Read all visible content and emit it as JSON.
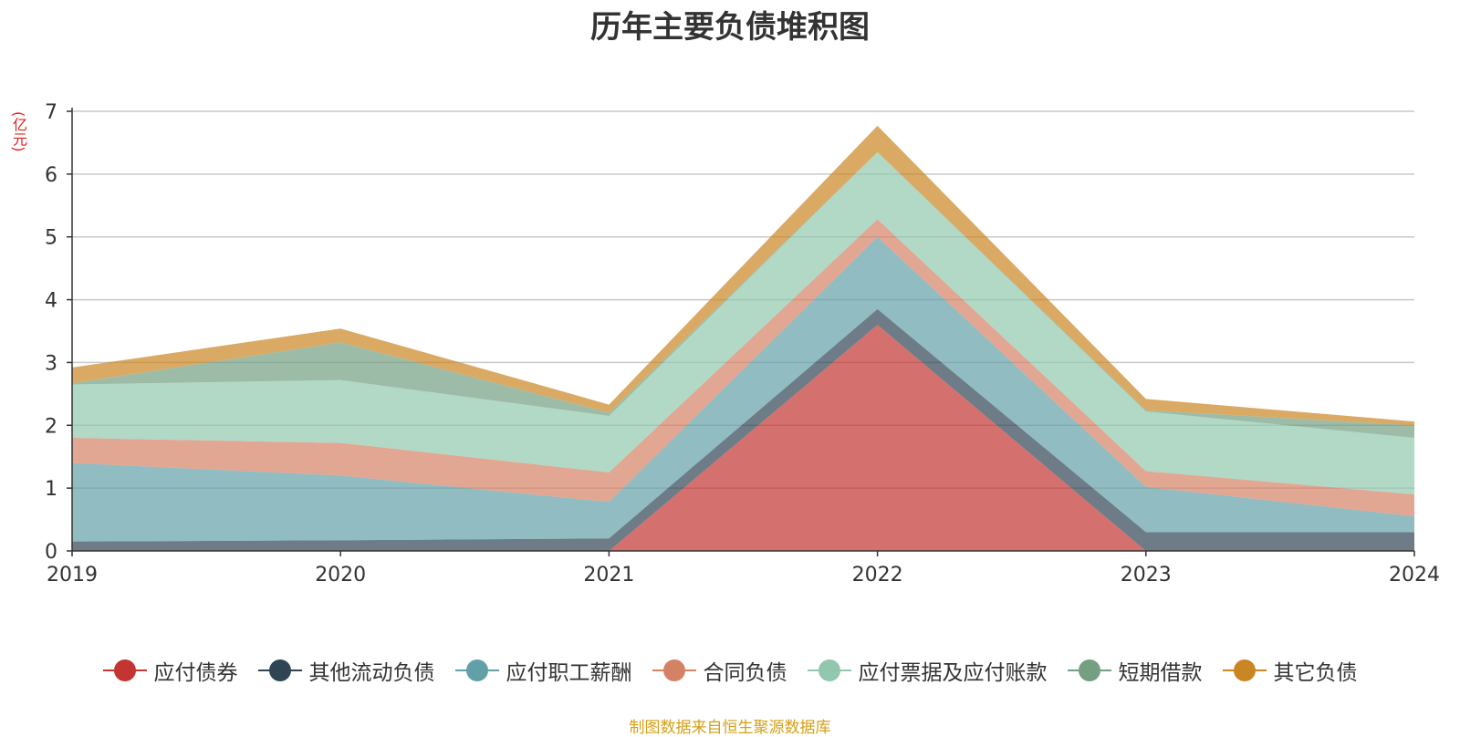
{
  "chart_data": {
    "type": "area",
    "stacked": true,
    "title": "历年主要负债堆积图",
    "ylabel": "(亿元)",
    "xlabel": "",
    "categories": [
      "2019",
      "2020",
      "2021",
      "2022",
      "2023",
      "2024"
    ],
    "ylim": [
      0,
      7
    ],
    "yticks": [
      "0",
      "1",
      "2",
      "3",
      "4",
      "5",
      "6",
      "7"
    ],
    "grid": true,
    "legend_position": "bottom",
    "series": [
      {
        "name": "应付债券",
        "color": "#c23531",
        "values": [
          0,
          0,
          0,
          3.6,
          0,
          0
        ]
      },
      {
        "name": "其他流动负债",
        "color": "#2f4554",
        "values": [
          0.15,
          0.17,
          0.2,
          0.25,
          0.3,
          0.3
        ]
      },
      {
        "name": "应付职工薪酬",
        "color": "#61a0a8",
        "values": [
          1.25,
          1.03,
          0.58,
          1.15,
          0.72,
          0.25
        ]
      },
      {
        "name": "合同负债",
        "color": "#d48265",
        "values": [
          0.4,
          0.52,
          0.47,
          0.28,
          0.25,
          0.35
        ]
      },
      {
        "name": "应付票据及应付账款",
        "color": "#91c7ae",
        "values": [
          0.85,
          1.0,
          0.9,
          1.07,
          0.95,
          0.9
        ]
      },
      {
        "name": "短期借款",
        "color": "#749f83",
        "values": [
          0.02,
          0.6,
          0.05,
          0,
          0.02,
          0.2
        ]
      },
      {
        "name": "其它负债",
        "color": "#ca8622",
        "values": [
          0.25,
          0.22,
          0.13,
          0.42,
          0.18,
          0.06
        ]
      }
    ]
  },
  "footer": {
    "source": "制图数据来自恒生聚源数据库"
  }
}
